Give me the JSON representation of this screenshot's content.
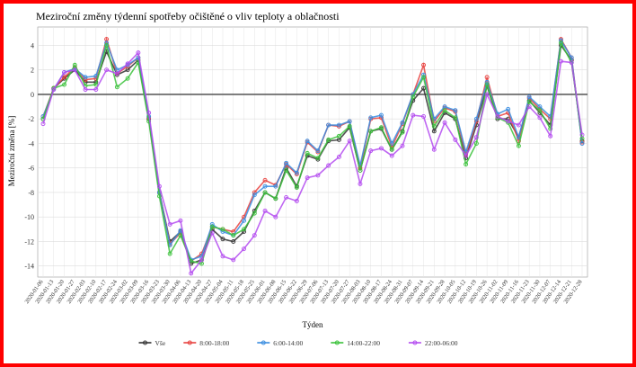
{
  "chart_data": {
    "type": "line",
    "title": "Meziroční změny týdenní spotřeby očištěné o vliv teploty a oblačnosti",
    "x_label": "Týden",
    "y_label": "Meziroční změna [%]",
    "categories": [
      "2020-01-06",
      "2020-01-13",
      "2020-01-20",
      "2020-01-27",
      "2020-02-03",
      "2020-02-10",
      "2020-02-17",
      "2020-02-24",
      "2020-03-02",
      "2020-03-09",
      "2020-03-16",
      "2020-03-23",
      "2020-03-30",
      "2020-04-06",
      "2020-04-13",
      "2020-04-20",
      "2020-04-27",
      "2020-05-04",
      "2020-05-11",
      "2020-05-18",
      "2020-05-25",
      "2020-06-01",
      "2020-06-08",
      "2020-06-15",
      "2020-06-22",
      "2020-06-29",
      "2020-07-06",
      "2020-07-13",
      "2020-07-20",
      "2020-07-27",
      "2020-08-03",
      "2020-08-10",
      "2020-08-17",
      "2020-08-24",
      "2020-08-31",
      "2020-09-07",
      "2020-09-14",
      "2020-09-21",
      "2020-09-28",
      "2020-10-05",
      "2020-10-12",
      "2020-10-19",
      "2020-10-26",
      "2020-11-02",
      "2020-11-09",
      "2020-11-16",
      "2020-11-23",
      "2020-11-30",
      "2020-12-07",
      "2020-12-14",
      "2020-12-21",
      "2020-12-28"
    ],
    "series": [
      {
        "name": "Vše",
        "color": "#333333",
        "values": [
          -2.0,
          0.5,
          1.3,
          2.0,
          1.0,
          1.0,
          3.5,
          1.6,
          2.0,
          2.8,
          -2.0,
          -8.0,
          -12.0,
          -11.2,
          -13.8,
          -13.5,
          -11.0,
          -11.8,
          -12.0,
          -11.2,
          -9.5,
          -8.0,
          -8.5,
          -6.0,
          -7.5,
          -5.0,
          -5.3,
          -3.8,
          -3.7,
          -2.7,
          -6.2,
          -3.0,
          -2.8,
          -4.5,
          -3.0,
          -0.5,
          0.5,
          -3.0,
          -1.5,
          -2.0,
          -5.2,
          -2.5,
          0.7,
          -2.0,
          -2.0,
          -3.5,
          -0.5,
          -1.5,
          -2.5,
          4.0,
          2.8,
          -3.8
        ]
      },
      {
        "name": "8:00-18:00",
        "color": "#e8423f",
        "values": [
          -1.8,
          0.5,
          1.4,
          2.2,
          1.2,
          1.3,
          4.5,
          1.7,
          2.3,
          3.0,
          -1.9,
          -8.0,
          -12.2,
          -11.3,
          -13.6,
          -13.0,
          -10.8,
          -11.0,
          -11.2,
          -10.0,
          -8.0,
          -7.0,
          -7.4,
          -5.7,
          -6.5,
          -3.9,
          -4.7,
          -2.5,
          -2.6,
          -2.2,
          -6.0,
          -2.0,
          -1.9,
          -4.3,
          -2.4,
          0.0,
          2.4,
          -2.2,
          -1.1,
          -1.4,
          -4.9,
          -2.2,
          1.4,
          -1.8,
          -1.5,
          -3.8,
          -0.3,
          -1.2,
          -2.0,
          4.5,
          3.0,
          -3.9
        ]
      },
      {
        "name": "6:00-14:00",
        "color": "#3a8de0",
        "values": [
          -1.8,
          0.4,
          1.8,
          2.1,
          1.4,
          1.5,
          4.2,
          2.0,
          2.4,
          3.0,
          -1.8,
          -8.0,
          -12.3,
          -11.1,
          -13.5,
          -13.2,
          -10.6,
          -11.2,
          -11.5,
          -10.3,
          -8.2,
          -7.5,
          -7.5,
          -5.6,
          -6.4,
          -3.8,
          -4.6,
          -2.5,
          -2.5,
          -2.2,
          -5.8,
          -1.9,
          -1.7,
          -4.0,
          -2.3,
          0.0,
          1.6,
          -2.0,
          -1.0,
          -1.3,
          -4.7,
          -2.0,
          1.0,
          -1.6,
          -1.2,
          -3.5,
          -0.2,
          -1.0,
          -1.8,
          4.4,
          3.0,
          -4.0
        ]
      },
      {
        "name": "14:00-22:00",
        "color": "#3cc23c",
        "values": [
          -2.0,
          0.5,
          0.8,
          2.4,
          0.7,
          0.8,
          4.0,
          0.6,
          1.3,
          2.6,
          -2.2,
          -8.3,
          -13.0,
          -11.5,
          -13.6,
          -13.8,
          -10.8,
          -11.0,
          -11.5,
          -11.0,
          -9.7,
          -8.0,
          -8.5,
          -6.2,
          -7.6,
          -4.8,
          -5.2,
          -3.7,
          -3.4,
          -2.6,
          -6.2,
          -3.0,
          -2.7,
          -4.5,
          -3.1,
          -0.2,
          1.4,
          -2.6,
          -1.3,
          -1.9,
          -5.7,
          -4.0,
          0.8,
          -1.9,
          -2.3,
          -4.2,
          -0.6,
          -1.3,
          -2.8,
          4.2,
          2.6,
          -3.6
        ]
      },
      {
        "name": "22:00-06:00",
        "color": "#b44cf0",
        "values": [
          -2.4,
          0.4,
          1.8,
          2.0,
          0.4,
          0.4,
          2.0,
          1.7,
          2.5,
          3.4,
          -1.5,
          -7.5,
          -10.6,
          -10.3,
          -14.6,
          -13.5,
          -11.3,
          -13.2,
          -13.5,
          -12.6,
          -11.5,
          -9.5,
          -10.0,
          -8.4,
          -8.7,
          -6.8,
          -6.6,
          -5.8,
          -5.1,
          -3.8,
          -7.3,
          -4.6,
          -4.4,
          -5.0,
          -4.2,
          -1.7,
          -1.8,
          -4.5,
          -2.3,
          -3.7,
          -5.0,
          -3.5,
          0.0,
          -1.8,
          -2.2,
          -2.5,
          -1.0,
          -1.9,
          -3.4,
          2.7,
          2.6,
          -3.3
        ]
      }
    ],
    "ylim": [
      -14.9,
      5.5
    ],
    "yticks": [
      -14,
      -12,
      -10,
      -8,
      -6,
      -4,
      -2,
      0,
      2,
      4
    ],
    "grid": true,
    "reference_line": 0,
    "legend": "bottom"
  }
}
